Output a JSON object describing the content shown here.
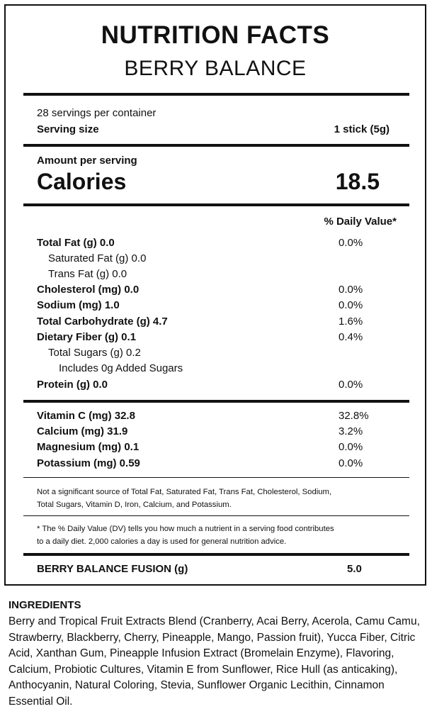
{
  "header": {
    "title": "NUTRITION FACTS",
    "product": "BERRY BALANCE"
  },
  "serving": {
    "per_container": "28 servings per container",
    "size_label": "Serving size",
    "size_value": "1 stick (5g)"
  },
  "calories": {
    "amount_label": "Amount per serving",
    "label": "Calories",
    "value": "18.5"
  },
  "dv_header": "% Daily Value*",
  "nutrients": [
    {
      "name": "Total Fat (g) 0.0",
      "dv": "0.0%"
    },
    {
      "name": "Saturated Fat (g) 0.0",
      "dv": ""
    },
    {
      "name": "Trans Fat (g) 0.0",
      "dv": ""
    },
    {
      "name": "Cholesterol (mg) 0.0",
      "dv": "0.0%"
    },
    {
      "name": "Sodium (mg) 1.0",
      "dv": "0.0%"
    },
    {
      "name": "Total Carbohydrate (g) 4.7",
      "dv": "1.6%"
    },
    {
      "name": "Dietary Fiber (g) 0.1",
      "dv": "0.4%"
    },
    {
      "name": "Total Sugars (g) 0.2",
      "dv": ""
    },
    {
      "name": "Includes 0g Added Sugars",
      "dv": ""
    },
    {
      "name": "Protein (g) 0.0",
      "dv": "0.0%"
    }
  ],
  "vitamins": [
    {
      "name": "Vitamin C (mg) 32.8",
      "dv": "32.8%"
    },
    {
      "name": "Calcium (mg) 31.9",
      "dv": "3.2%"
    },
    {
      "name": "Magnesium (mg) 0.1",
      "dv": "0.0%"
    },
    {
      "name": "Potassium (mg) 0.59",
      "dv": "0.0%"
    }
  ],
  "notes": {
    "not_significant_1": "Not a significant source of Total Fat, Saturated Fat, Trans Fat, Cholesterol, Sodium,",
    "not_significant_2": "Total Sugars, Vitamin D, Iron, Calcium, and Potassium.",
    "dv_footnote_1": "* The % Daily Value (DV) tells you how much a nutrient in a serving food contributes",
    "dv_footnote_2": "to a daily diet. 2,000 calories a day is used for general nutrition advice."
  },
  "blend": {
    "label": "BERRY BALANCE FUSION (g)",
    "value": "5.0"
  },
  "ingredients": {
    "heading": "INGREDIENTS",
    "text": "Berry and Tropical Fruit Extracts Blend (Cranberry, Acai Berry, Acerola, Camu Camu, Strawberry, Blackberry, Cherry, Pineapple, Mango, Passion fruit), Yucca Fiber, Citric Acid, Xanthan Gum, Pineapple Infusion Extract (Bromelain Enzyme), Flavoring, Calcium, Probiotic Cultures, Vitamin E from Sunflower, Rice Hull (as anticaking), Anthocyanin, Natural Coloring, Stevia, Sunflower Organic Lecithin, Cinnamon Essential Oil."
  }
}
